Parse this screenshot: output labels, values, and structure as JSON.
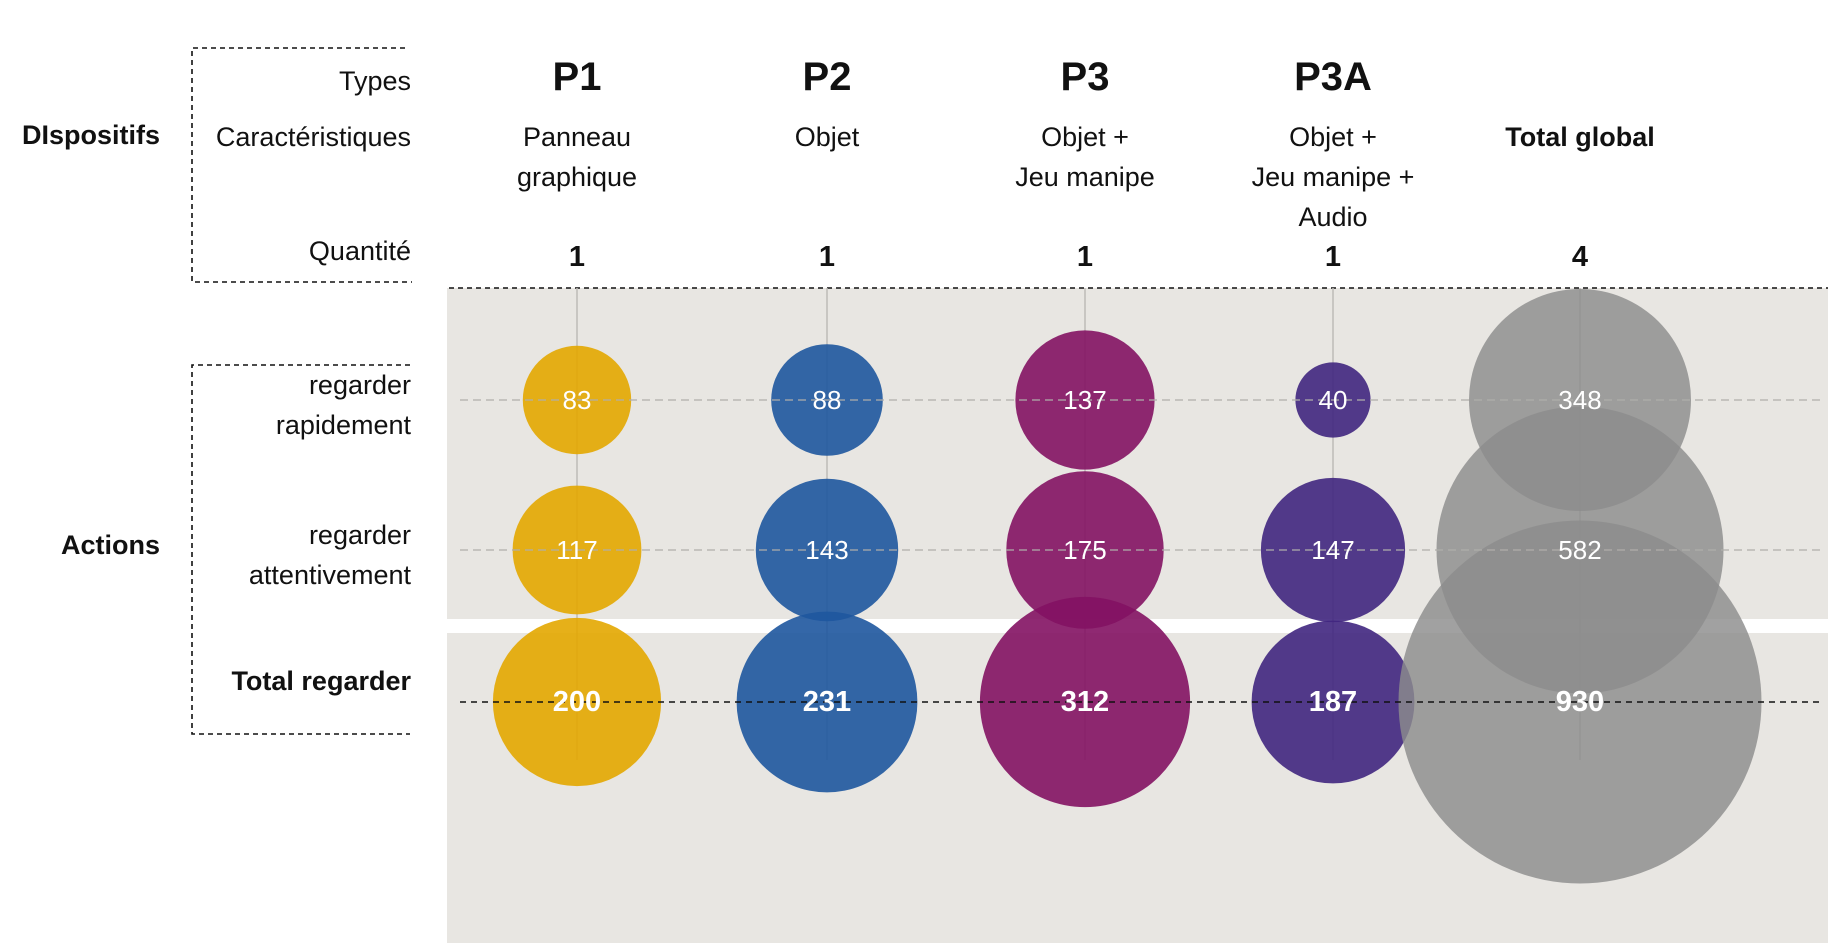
{
  "chart_data": {
    "type": "bubble",
    "group_labels": {
      "dispositifs": "DIspositifs",
      "actions": "Actions"
    },
    "header_rows": {
      "types": "Types",
      "caracteristiques": "Caractéristiques",
      "quantite": "Quantité"
    },
    "columns": [
      {
        "type": "P1",
        "characteristics": [
          "Panneau",
          "graphique"
        ],
        "quantity": "1",
        "color": "#E3A700"
      },
      {
        "type": "P2",
        "characteristics": [
          "Objet"
        ],
        "quantity": "1",
        "color": "#1E569E"
      },
      {
        "type": "P3",
        "characteristics": [
          "Objet +",
          "Jeu manipe"
        ],
        "quantity": "1",
        "color": "#831263"
      },
      {
        "type": "P3A",
        "characteristics": [
          "Objet +",
          "Jeu manipe +",
          "Audio"
        ],
        "quantity": "1",
        "color": "#40267F"
      },
      {
        "type": "",
        "characteristics": [
          "Total global"
        ],
        "quantity": "4",
        "color": "#8C8C8C"
      }
    ],
    "actions": [
      {
        "label": [
          "regarder",
          "rapidement"
        ],
        "values": [
          83,
          88,
          137,
          40,
          348
        ],
        "bold": false
      },
      {
        "label": [
          "regarder",
          "attentivement"
        ],
        "values": [
          117,
          143,
          175,
          147,
          582
        ],
        "bold": false
      },
      {
        "label": [
          "Total regarder"
        ],
        "values": [
          200,
          231,
          312,
          187,
          930
        ],
        "bold": true
      }
    ],
    "background_color": "#E8E6E2"
  }
}
